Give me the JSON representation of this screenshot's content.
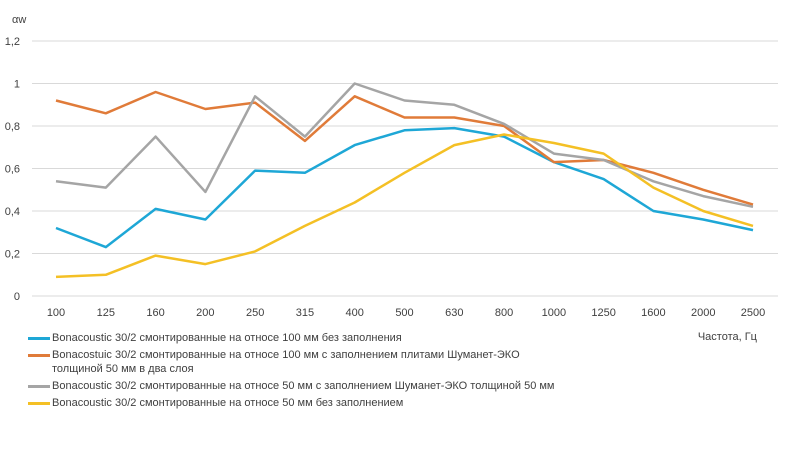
{
  "chart_data": {
    "type": "line",
    "ylabel": "αw",
    "xlabel": "Частота, Гц",
    "ylim": [
      0,
      1.2
    ],
    "yticks": [
      "0",
      "0,2",
      "0,4",
      "0,6",
      "0,8",
      "1",
      "1,2"
    ],
    "grid": true,
    "legend_position": "bottom-left",
    "categories": [
      "100",
      "125",
      "160",
      "200",
      "250",
      "315",
      "400",
      "500",
      "630",
      "800",
      "1000",
      "1250",
      "1600",
      "2000",
      "2500"
    ],
    "series": [
      {
        "name": "Bonacoustic 30/2 смонтированные на относе 100 мм без заполнения",
        "color": "#1ea7d6",
        "values": [
          0.32,
          0.23,
          0.41,
          0.36,
          0.59,
          0.58,
          0.71,
          0.78,
          0.79,
          0.75,
          0.63,
          0.55,
          0.4,
          0.36,
          0.31
        ]
      },
      {
        "name": "Bonacostuic 30/2 смонтированные на относе 100 мм с заполнением плитами Шуманет-ЭКО толщиной 50 мм в два слоя",
        "color": "#e07b39",
        "values": [
          0.92,
          0.86,
          0.96,
          0.88,
          0.91,
          0.73,
          0.94,
          0.84,
          0.84,
          0.8,
          0.63,
          0.64,
          0.58,
          0.5,
          0.43
        ]
      },
      {
        "name": "Bonacoustic 30/2 смонтированные на относе 50 мм с заполнением Шуманет-ЭКО толщиной 50 мм",
        "color": "#a5a5a5",
        "values": [
          0.54,
          0.51,
          0.75,
          0.49,
          0.94,
          0.75,
          1.0,
          0.92,
          0.9,
          0.81,
          0.67,
          0.64,
          0.54,
          0.47,
          0.42
        ]
      },
      {
        "name": "Bonacoustic 30/2 смонтированные на относе 50 мм без заполнением",
        "color": "#f4c025",
        "values": [
          0.09,
          0.1,
          0.19,
          0.15,
          0.21,
          0.33,
          0.44,
          0.58,
          0.71,
          0.76,
          0.72,
          0.67,
          0.51,
          0.4,
          0.33
        ]
      }
    ]
  }
}
